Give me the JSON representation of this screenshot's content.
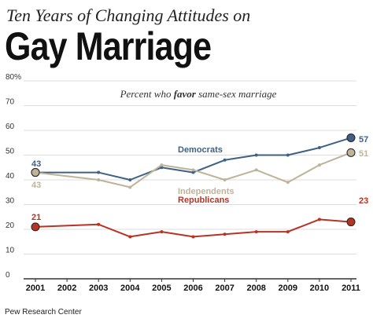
{
  "header": {
    "supertitle": "Ten Years of Changing Attitudes on",
    "title": "Gay Marriage"
  },
  "footer": {
    "source": "Pew Research Center"
  },
  "colors": {
    "democrats": "#3e6185",
    "independents": "#bfb398",
    "republicans": "#b73424",
    "gridline": "#dddddd",
    "axis": "#333333"
  },
  "chart_data": {
    "type": "line",
    "subtitle_parts": [
      "Percent who ",
      "favor",
      " same-sex marriage"
    ],
    "x": [
      2001,
      2002,
      2003,
      2004,
      2005,
      2006,
      2007,
      2008,
      2009,
      2010,
      2011
    ],
    "x_tick_labels": [
      "2001",
      "2002",
      "2003",
      "2004",
      "2005",
      "2006",
      "2007",
      "2008",
      "2009",
      "2010",
      "2011"
    ],
    "y_ticks": [
      {
        "value": 0,
        "label": "0"
      },
      {
        "value": 10,
        "label": "10"
      },
      {
        "value": 20,
        "label": "20"
      },
      {
        "value": 30,
        "label": "30"
      },
      {
        "value": 40,
        "label": "40"
      },
      {
        "value": 50,
        "label": "50"
      },
      {
        "value": 60,
        "label": "60"
      },
      {
        "value": 70,
        "label": "70"
      },
      {
        "value": 80,
        "label": "80%"
      }
    ],
    "ylim": [
      0,
      80
    ],
    "grid": true,
    "series": [
      {
        "key": "democrats",
        "name": "Democrats",
        "x": [
          2001,
          2003,
          2004,
          2005,
          2006,
          2007,
          2008,
          2009,
          2010,
          2011
        ],
        "values": [
          43,
          43,
          40,
          45,
          43,
          48,
          50,
          50,
          53,
          57
        ],
        "start_label": "43",
        "end_label": "57"
      },
      {
        "key": "independents",
        "name": "Independents",
        "x": [
          2001,
          2003,
          2004,
          2005,
          2006,
          2007,
          2008,
          2009,
          2010,
          2011
        ],
        "values": [
          43,
          40,
          37,
          46,
          44,
          40,
          44,
          39,
          46,
          51
        ],
        "start_label": "43",
        "end_label": "51"
      },
      {
        "key": "republicans",
        "name": "Republicans",
        "x": [
          2001,
          2003,
          2004,
          2005,
          2006,
          2007,
          2008,
          2009,
          2010,
          2011
        ],
        "values": [
          21,
          22,
          17,
          19,
          17,
          18,
          19,
          19,
          24,
          23
        ],
        "start_label": "21",
        "end_label": "23"
      }
    ]
  }
}
